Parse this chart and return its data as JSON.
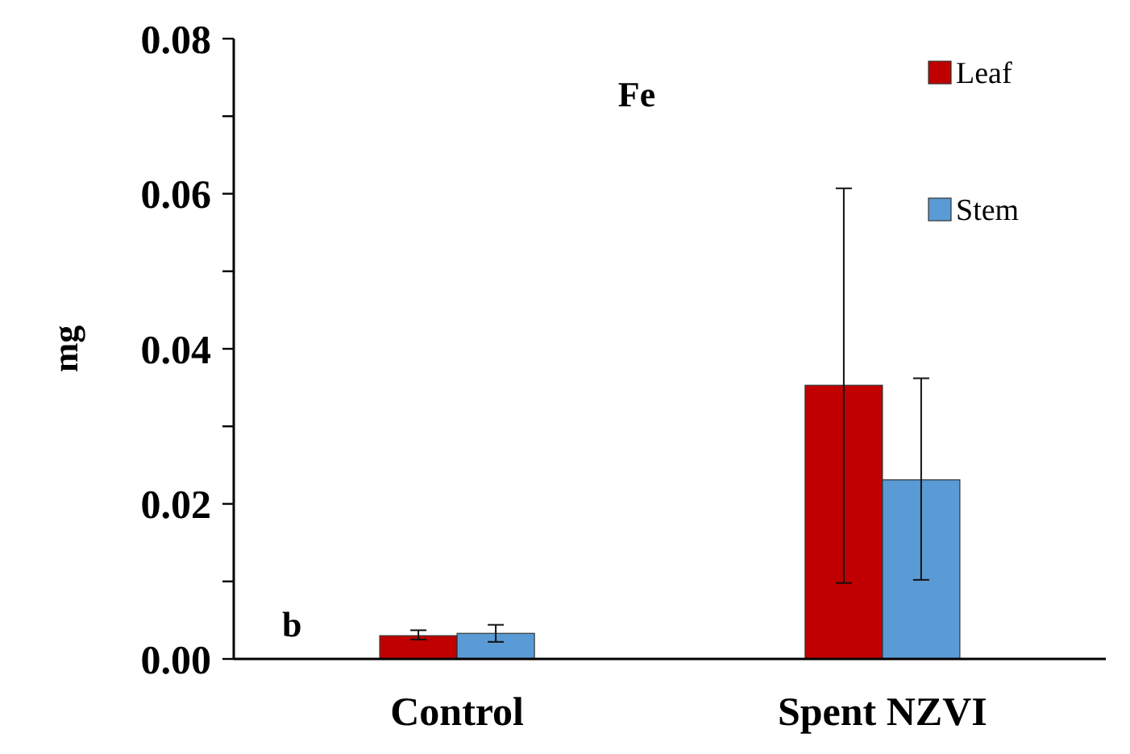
{
  "chart_data": {
    "type": "bar",
    "title": "Fe",
    "ylabel": "mg",
    "categories": [
      "Control",
      "Spent NZVI"
    ],
    "series": [
      {
        "name": "Leaf",
        "color": "#c00000",
        "values": [
          0.003,
          0.0353
        ],
        "errors": [
          [
            0.0025,
            0.0037
          ],
          [
            0.0098,
            0.0607
          ]
        ]
      },
      {
        "name": "Stem",
        "color": "#5b9bd5",
        "values": [
          0.0033,
          0.0231
        ],
        "errors": [
          [
            0.0022,
            0.0044
          ],
          [
            0.0102,
            0.0362
          ]
        ]
      }
    ],
    "ylim": [
      0,
      0.08
    ],
    "yticks": [
      {
        "value": 0,
        "label": "0.00"
      },
      {
        "value": 0.01,
        "label": null
      },
      {
        "value": 0.02,
        "label": "0.02"
      },
      {
        "value": 0.03,
        "label": null
      },
      {
        "value": 0.04,
        "label": "0.04"
      },
      {
        "value": 0.05,
        "label": null
      },
      {
        "value": 0.06,
        "label": "0.06"
      },
      {
        "value": 0.07,
        "label": null
      },
      {
        "value": 0.08,
        "label": "0.08"
      }
    ],
    "annotations": [
      "b"
    ],
    "legend": "top right",
    "grid": false
  }
}
